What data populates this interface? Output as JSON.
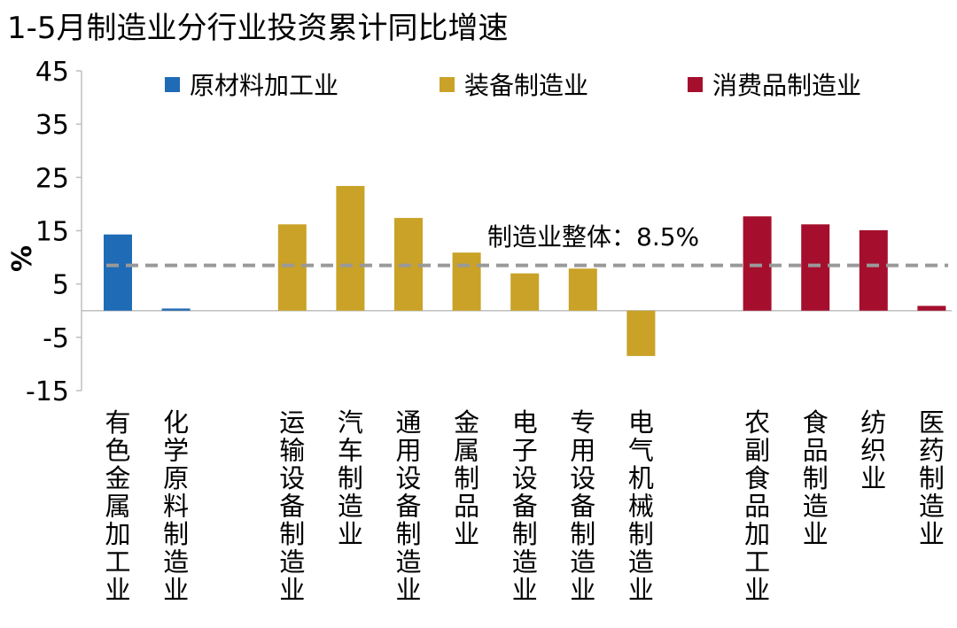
{
  "chart_data": {
    "type": "bar",
    "title": "1-5月制造业分行业投资累计同比增速",
    "ylabel": "%",
    "ylim": [
      -15,
      45
    ],
    "yticks": [
      -15,
      -5,
      5,
      15,
      25,
      35,
      45
    ],
    "grid": false,
    "legend_position": "top",
    "categories": [
      "有色金属加工业",
      "化学原料制造业",
      "",
      "运输设备制造业",
      "汽车制造业",
      "通用设备制造业",
      "金属制品业",
      "电子设备制造业",
      "专用设备制造业",
      "电气机械制造业",
      "",
      "农副食品加工业",
      "食品制造业",
      "纺织业",
      "医药制造业"
    ],
    "values": [
      14.3,
      0.4,
      null,
      16.2,
      23.4,
      17.4,
      10.9,
      7.0,
      7.9,
      -8.5,
      null,
      17.7,
      16.2,
      15.1,
      0.9
    ],
    "groups": [
      0,
      0,
      null,
      1,
      1,
      1,
      1,
      1,
      1,
      1,
      null,
      2,
      2,
      2,
      2
    ],
    "series": [
      {
        "name": "原材料加工业",
        "color": "#1F6BB5"
      },
      {
        "name": "装备制造业",
        "color": "#C9A227"
      },
      {
        "name": "消费品制造业",
        "color": "#A50F2D"
      }
    ],
    "reference_line": {
      "value": 8.5,
      "label": "制造业整体：8.5%",
      "color": "#999999"
    }
  }
}
